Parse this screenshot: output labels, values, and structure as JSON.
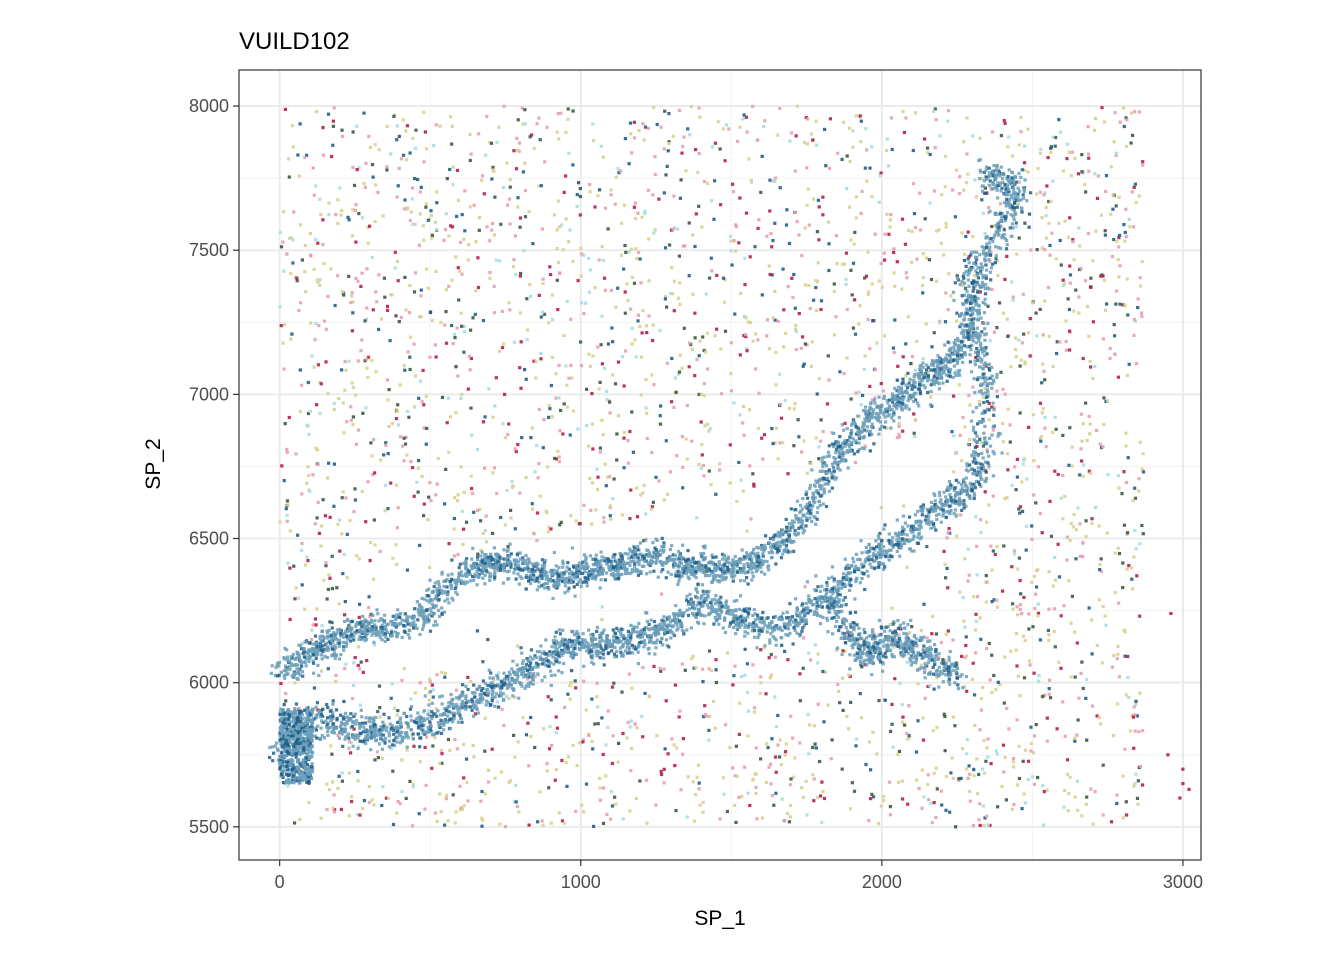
{
  "chart_data": {
    "type": "scatter",
    "title": "VUILD102",
    "xlabel": "SP_1",
    "ylabel": "SP_2",
    "xlim": [
      -135,
      3060
    ],
    "ylim": [
      5385,
      8125
    ],
    "x_ticks": [
      0,
      1000,
      2000,
      3000
    ],
    "y_ticks": [
      5500,
      6000,
      6500,
      7000,
      7500,
      8000
    ],
    "x_tick_labels": [
      "0",
      "1000",
      "2000",
      "3000"
    ],
    "y_tick_labels": [
      "5500",
      "6000",
      "6500",
      "7000",
      "7500",
      "8000"
    ],
    "grid": true,
    "legend": "none",
    "background": "#ffffff",
    "grid_color": "#ebebeb",
    "panel_border_color": "#333333",
    "colors": {
      "steel_blue": "#6b9fba",
      "dark_blue": "#1f5f8b",
      "khaki": "#d9d18f",
      "pink": "#e8a0b0",
      "crimson": "#b5204a",
      "light_cyan": "#a9dde6",
      "dark_green": "#3b5b3f"
    },
    "point_layers": [
      {
        "label": "scattered-points",
        "color_mix": [
          "khaki",
          "pink",
          "crimson",
          "light_cyan",
          "dark_green",
          "dark_blue"
        ],
        "density": "sparse, across full tissue area"
      },
      {
        "label": "blue-channel-points",
        "color_mix": [
          "steel_blue",
          "dark_blue"
        ],
        "density": "dense, along branching channel"
      }
    ],
    "channel_path": [
      [
        0,
        5760
      ],
      [
        120,
        5870
      ],
      [
        250,
        5840
      ],
      [
        380,
        5830
      ],
      [
        520,
        5870
      ],
      [
        630,
        5940
      ],
      [
        760,
        6000
      ],
      [
        880,
        6080
      ],
      [
        960,
        6130
      ],
      [
        1080,
        6130
      ],
      [
        1200,
        6150
      ],
      [
        1300,
        6200
      ],
      [
        1400,
        6280
      ],
      [
        1500,
        6240
      ],
      [
        1620,
        6180
      ],
      [
        1700,
        6210
      ],
      [
        1800,
        6280
      ],
      [
        1900,
        6380
      ],
      [
        2000,
        6460
      ],
      [
        2100,
        6530
      ],
      [
        2200,
        6610
      ],
      [
        2300,
        6680
      ],
      [
        2340,
        6780
      ],
      [
        2330,
        6900
      ],
      [
        2350,
        7050
      ],
      [
        2300,
        7200
      ],
      [
        2280,
        7380
      ],
      [
        2380,
        7550
      ],
      [
        2450,
        7720
      ],
      [
        2340,
        7760
      ]
    ],
    "channel_path_upper": [
      [
        0,
        6040
      ],
      [
        120,
        6110
      ],
      [
        250,
        6180
      ],
      [
        380,
        6190
      ],
      [
        480,
        6230
      ],
      [
        560,
        6330
      ],
      [
        650,
        6400
      ],
      [
        760,
        6420
      ],
      [
        900,
        6360
      ],
      [
        1040,
        6390
      ],
      [
        1150,
        6410
      ],
      [
        1250,
        6450
      ],
      [
        1320,
        6400
      ],
      [
        1450,
        6390
      ],
      [
        1560,
        6410
      ],
      [
        1660,
        6470
      ],
      [
        1760,
        6620
      ],
      [
        1860,
        6800
      ],
      [
        1980,
        6930
      ],
      [
        2060,
        6970
      ],
      [
        2140,
        7060
      ],
      [
        2250,
        7120
      ],
      [
        2300,
        7250
      ],
      [
        2330,
        7400
      ]
    ],
    "channel_branch": [
      [
        1820,
        6300
      ],
      [
        1880,
        6180
      ],
      [
        1950,
        6100
      ],
      [
        2050,
        6160
      ],
      [
        2150,
        6090
      ],
      [
        2240,
        6030
      ]
    ]
  }
}
